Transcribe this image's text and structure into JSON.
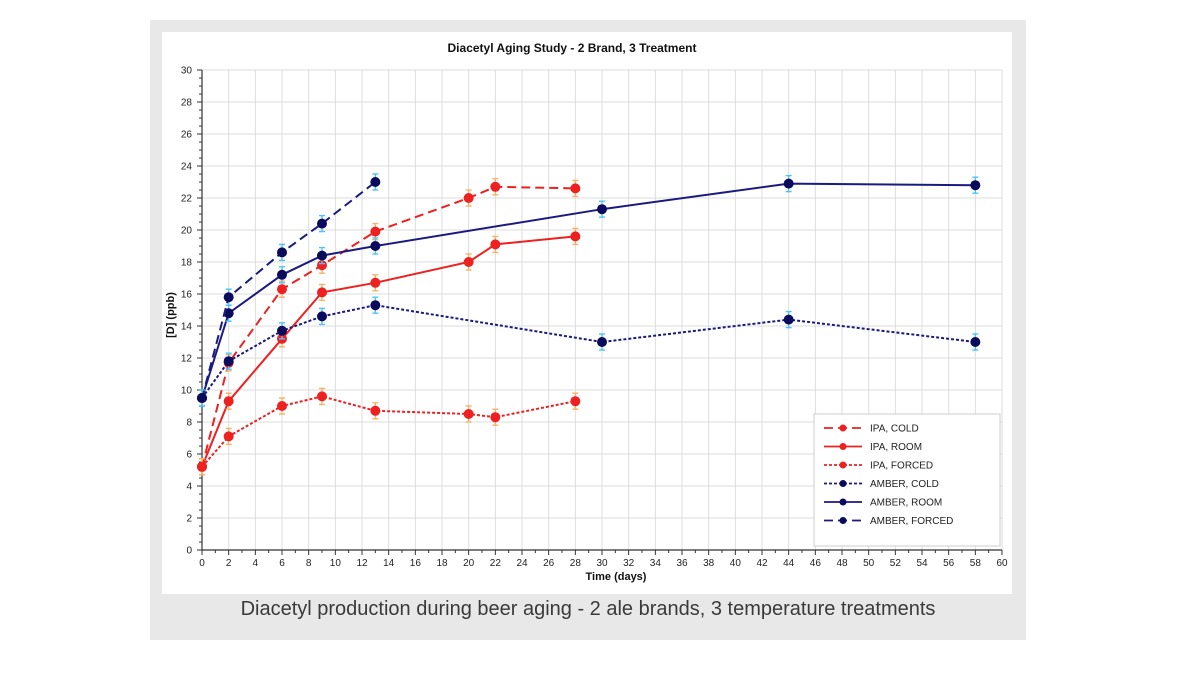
{
  "caption": "Diacetyl production during beer aging - 2 ale brands, 3 temperature treatments",
  "colors": {
    "ipa": "#ee2020",
    "amber": "#1a1a80",
    "amber_marker": "#0b0b5e",
    "errorbar_ipa": "#f6b26b",
    "errorbar_amber": "#4fc3f7",
    "grid": "#dddddd",
    "panel": "#e8e8e8"
  },
  "chart_data": {
    "type": "line",
    "title": "Diacetyl Aging Study - 2 Brand, 3 Treatment",
    "xlabel": "Time (days)",
    "ylabel": "[D] (ppb)",
    "xlim": [
      0,
      60
    ],
    "ylim": [
      0,
      30
    ],
    "xticks": [
      0,
      2,
      4,
      6,
      8,
      10,
      12,
      14,
      16,
      18,
      20,
      22,
      24,
      26,
      28,
      30,
      32,
      34,
      36,
      38,
      40,
      42,
      44,
      46,
      48,
      50,
      52,
      54,
      56,
      58,
      60
    ],
    "yticks": [
      0,
      2,
      4,
      6,
      8,
      10,
      12,
      14,
      16,
      18,
      20,
      22,
      24,
      26,
      28,
      30
    ],
    "grid": true,
    "legend_position": "bottom-right",
    "series": [
      {
        "name": "IPA, COLD",
        "brand": "ipa",
        "style": "dashed",
        "x": [
          0,
          2,
          6,
          9,
          13,
          20,
          22,
          28
        ],
        "y": [
          5.2,
          11.7,
          16.3,
          17.8,
          19.9,
          22.0,
          22.7,
          22.6
        ]
      },
      {
        "name": "IPA, ROOM",
        "brand": "ipa",
        "style": "solid",
        "x": [
          0,
          2,
          6,
          9,
          13,
          20,
          22,
          28
        ],
        "y": [
          5.2,
          9.3,
          13.2,
          16.1,
          16.7,
          18.0,
          19.1,
          19.6
        ]
      },
      {
        "name": "IPA, FORCED",
        "brand": "ipa",
        "style": "dotted",
        "x": [
          0,
          2,
          6,
          9,
          13,
          20,
          22,
          28
        ],
        "y": [
          5.2,
          7.1,
          9.0,
          9.6,
          8.7,
          8.5,
          8.3,
          9.3
        ]
      },
      {
        "name": "AMBER, COLD",
        "brand": "amber",
        "style": "dotted",
        "x": [
          0,
          2,
          6,
          9,
          13,
          30,
          44,
          58
        ],
        "y": [
          9.5,
          11.8,
          13.7,
          14.6,
          15.3,
          13.0,
          14.4,
          13.0
        ]
      },
      {
        "name": "AMBER, ROOM",
        "brand": "amber",
        "style": "solid",
        "x": [
          0,
          2,
          6,
          9,
          13,
          30,
          44,
          58
        ],
        "y": [
          9.5,
          14.8,
          17.2,
          18.4,
          19.0,
          21.3,
          22.9,
          22.8
        ]
      },
      {
        "name": "AMBER, FORCED",
        "brand": "amber",
        "style": "dashed",
        "x": [
          0,
          2,
          6,
          9,
          13
        ],
        "y": [
          9.5,
          15.8,
          18.6,
          20.4,
          23.0
        ]
      }
    ]
  }
}
